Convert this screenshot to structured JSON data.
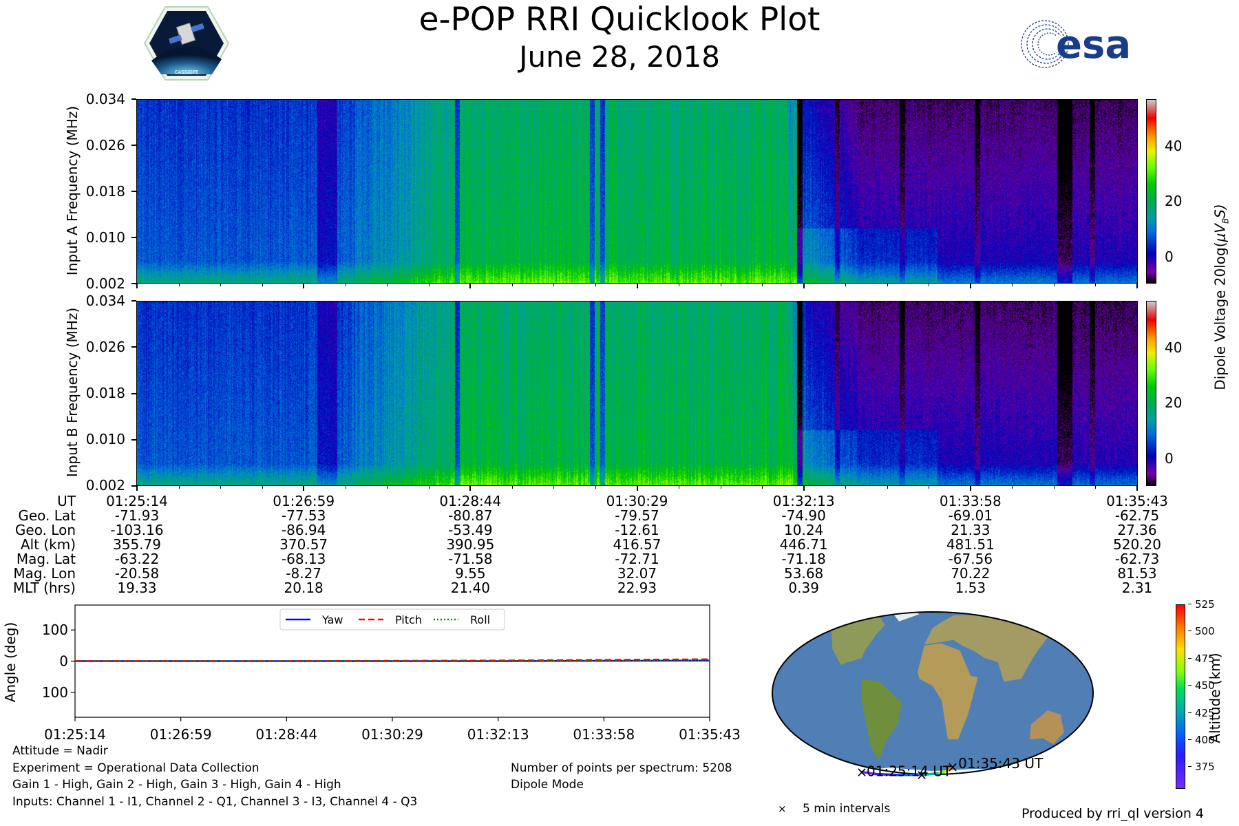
{
  "header": {
    "title": "e-POP RRI Quicklook Plot",
    "date": "June 28, 2018",
    "cassiope_logo_text": "CASSIOPE",
    "esa_logo_text": "esa"
  },
  "colors": {
    "spectrogram_background": "#1b0b5c",
    "yaw": "#0000ff",
    "pitch": "#ff0000",
    "roll": "#008000"
  },
  "chart_data": [
    {
      "id": "spectrogram_input_a",
      "type": "heatmap",
      "ylabel": "Input A Frequency (MHz)",
      "y_ticks": [
        "0.002",
        "0.010",
        "0.018",
        "0.026",
        "0.034"
      ],
      "ylim": [
        0.002,
        0.034
      ],
      "x_ticks": [
        "01:25:14",
        "01:26:59",
        "01:28:44",
        "01:30:29",
        "01:32:13",
        "01:33:58",
        "01:35:43"
      ],
      "colorbar": {
        "label_prefix": "Dipole Voltage 20log(",
        "label_symbol": "μV",
        "label_subscript": "B",
        "label_suffix": "S)",
        "ticks": [
          "0",
          "20",
          "40"
        ],
        "range": [
          -10,
          56
        ],
        "colormap": "nipy_spectral"
      }
    },
    {
      "id": "spectrogram_input_b",
      "type": "heatmap",
      "ylabel": "Input B Frequency (MHz)",
      "y_ticks": [
        "0.002",
        "0.010",
        "0.018",
        "0.026",
        "0.034"
      ],
      "ylim": [
        0.002,
        0.034
      ],
      "colorbar": {
        "ticks": [
          "0",
          "20",
          "40"
        ],
        "range": [
          -10,
          56
        ],
        "colormap": "nipy_spectral"
      }
    },
    {
      "id": "ephemeris_table",
      "type": "table",
      "row_labels": [
        "UT",
        "Geo. Lat",
        "Geo. Lon",
        "Alt (km)",
        "Mag. Lat",
        "Mag. Lon",
        "MLT (hrs)"
      ],
      "columns": [
        [
          "01:25:14",
          "-71.93",
          "-103.16",
          "355.79",
          "-63.22",
          "-20.58",
          "19.33"
        ],
        [
          "01:26:59",
          "-77.53",
          "-86.94",
          "370.57",
          "-68.13",
          "-8.27",
          "20.18"
        ],
        [
          "01:28:44",
          "-80.87",
          "-53.49",
          "390.95",
          "-71.58",
          "9.55",
          "21.40"
        ],
        [
          "01:30:29",
          "-79.57",
          "-12.61",
          "416.57",
          "-72.71",
          "32.07",
          "22.93"
        ],
        [
          "01:32:13",
          "-74.90",
          "10.24",
          "446.71",
          "-71.18",
          "53.68",
          "0.39"
        ],
        [
          "01:33:58",
          "-69.01",
          "21.33",
          "481.51",
          "-67.56",
          "70.22",
          "1.53"
        ],
        [
          "01:35:43",
          "-62.75",
          "27.36",
          "520.20",
          "-62.73",
          "81.53",
          "2.31"
        ]
      ]
    },
    {
      "id": "attitude_plot",
      "type": "line",
      "ylabel": "Angle (deg)",
      "y_ticks": [
        "100",
        "0",
        "−100"
      ],
      "y_tick_values": [
        100,
        0,
        -100
      ],
      "ylim": [
        -180,
        180
      ],
      "x_ticks": [
        "01:25:14",
        "01:26:59",
        "01:28:44",
        "01:30:29",
        "01:32:13",
        "01:33:58",
        "01:35:43"
      ],
      "legend_placement": "top-center",
      "x": [
        0,
        1,
        2,
        3,
        4,
        5,
        6
      ],
      "series": [
        {
          "name": "Yaw",
          "values": [
            0,
            0,
            0,
            0,
            0,
            1,
            2
          ]
        },
        {
          "name": "Pitch",
          "values": [
            0,
            0,
            0,
            1,
            2,
            4,
            6
          ]
        },
        {
          "name": "Roll",
          "values": [
            0,
            0,
            0,
            0,
            0,
            1,
            1
          ]
        }
      ]
    },
    {
      "id": "orbit_map",
      "type": "scatter",
      "start_label": "01:25:14 UT",
      "end_label": "01:35:43 UT",
      "interval_legend": "5 min intervals",
      "track": {
        "lon": [
          -103.16,
          -86.94,
          -53.49,
          -12.61,
          10.24,
          21.33,
          27.36
        ],
        "lat": [
          -71.93,
          -77.53,
          -80.87,
          -79.57,
          -74.9,
          -69.01,
          -62.75
        ]
      },
      "markers": {
        "lon": [
          -103.16,
          -17.0,
          27.36
        ],
        "lat": [
          -71.93,
          -79.8,
          -62.75
        ]
      },
      "colorbar": {
        "label": "Altitude (km)",
        "ticks": [
          "525",
          "500",
          "475",
          "450",
          "425",
          "400",
          "375"
        ],
        "tick_values": [
          525,
          500,
          475,
          450,
          425,
          400,
          375
        ],
        "range": [
          355,
          525
        ]
      }
    }
  ],
  "footer": {
    "attitude": "Attitude = Nadir",
    "experiment": "Experiment = Operational Data Collection",
    "gains": "Gain 1 - High, Gain 2 - High, Gain 3 - High, Gain 4 - High",
    "inputs": "Inputs: Channel 1 - I1, Channel 2 - Q1, Channel 3 - I3, Channel 4 - Q3",
    "points": "Number of points per spectrum: 5208",
    "mode": "Dipole Mode",
    "produced_by": "Produced by rri_ql version 4"
  }
}
